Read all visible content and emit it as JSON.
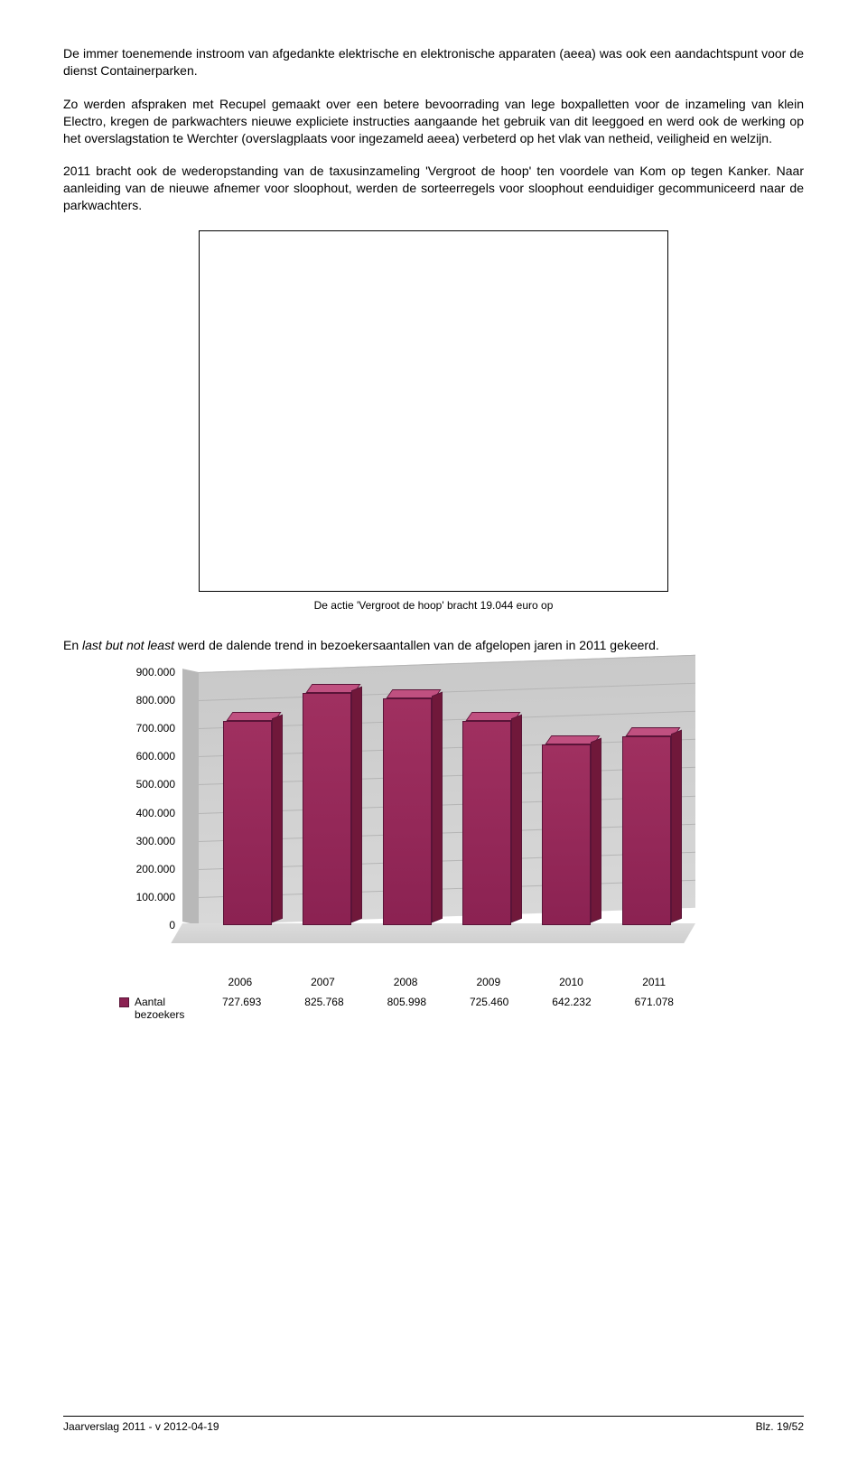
{
  "paragraphs": {
    "p1": "De immer toenemende instroom van afgedankte elektrische en elektronische apparaten (aeea) was ook een aandachtspunt voor de dienst Containerparken.",
    "p2": "Zo werden afspraken met Recupel gemaakt over een betere bevoorrading van lege boxpalletten voor de inzameling van klein Electro, kregen de parkwachters nieuwe expliciete instructies aangaande het gebruik van dit leeggoed en werd ook de werking op het overslagstation te Werchter (overslagplaats voor ingezameld aeea) verbeterd op het vlak van netheid, veiligheid en welzijn.",
    "p3": "2011 bracht ook de wederopstanding van de taxusinzameling 'Vergroot de hoop' ten voordele van Kom op tegen Kanker. Naar aanleiding van de nieuwe afnemer voor sloophout, werden de sorteerregels voor sloophout eenduidiger gecommuniceerd naar de parkwachters.",
    "caption": "De actie 'Vergroot de hoop' bracht 19.044 euro op",
    "p4_pre": "En ",
    "p4_italic": "last but not least",
    "p4_post": " werd de dalende trend in bezoekersaantallen van de afgelopen jaren in 2011 gekeerd."
  },
  "chart": {
    "type": "bar",
    "categories": [
      "2006",
      "2007",
      "2008",
      "2009",
      "2010",
      "2011"
    ],
    "values": [
      727693,
      825768,
      805998,
      725460,
      642232,
      671078
    ],
    "value_labels": [
      "727.693",
      "825.768",
      "805.998",
      "725.460",
      "642.232",
      "671.078"
    ],
    "y_ticks": [
      "0",
      "100.000",
      "200.000",
      "300.000",
      "400.000",
      "500.000",
      "600.000",
      "700.000",
      "800.000",
      "900.000"
    ],
    "ymax": 900000,
    "bar_color": "#8b2252",
    "bar_top_color": "#c05080",
    "bar_side_color": "#70183a",
    "wall_color": "#d0d0d0",
    "legend_label": "Aantal bezoekers"
  },
  "footer": {
    "left": "Jaarverslag 2011 - v 2012-04-19",
    "right": "Blz. 19/52"
  }
}
